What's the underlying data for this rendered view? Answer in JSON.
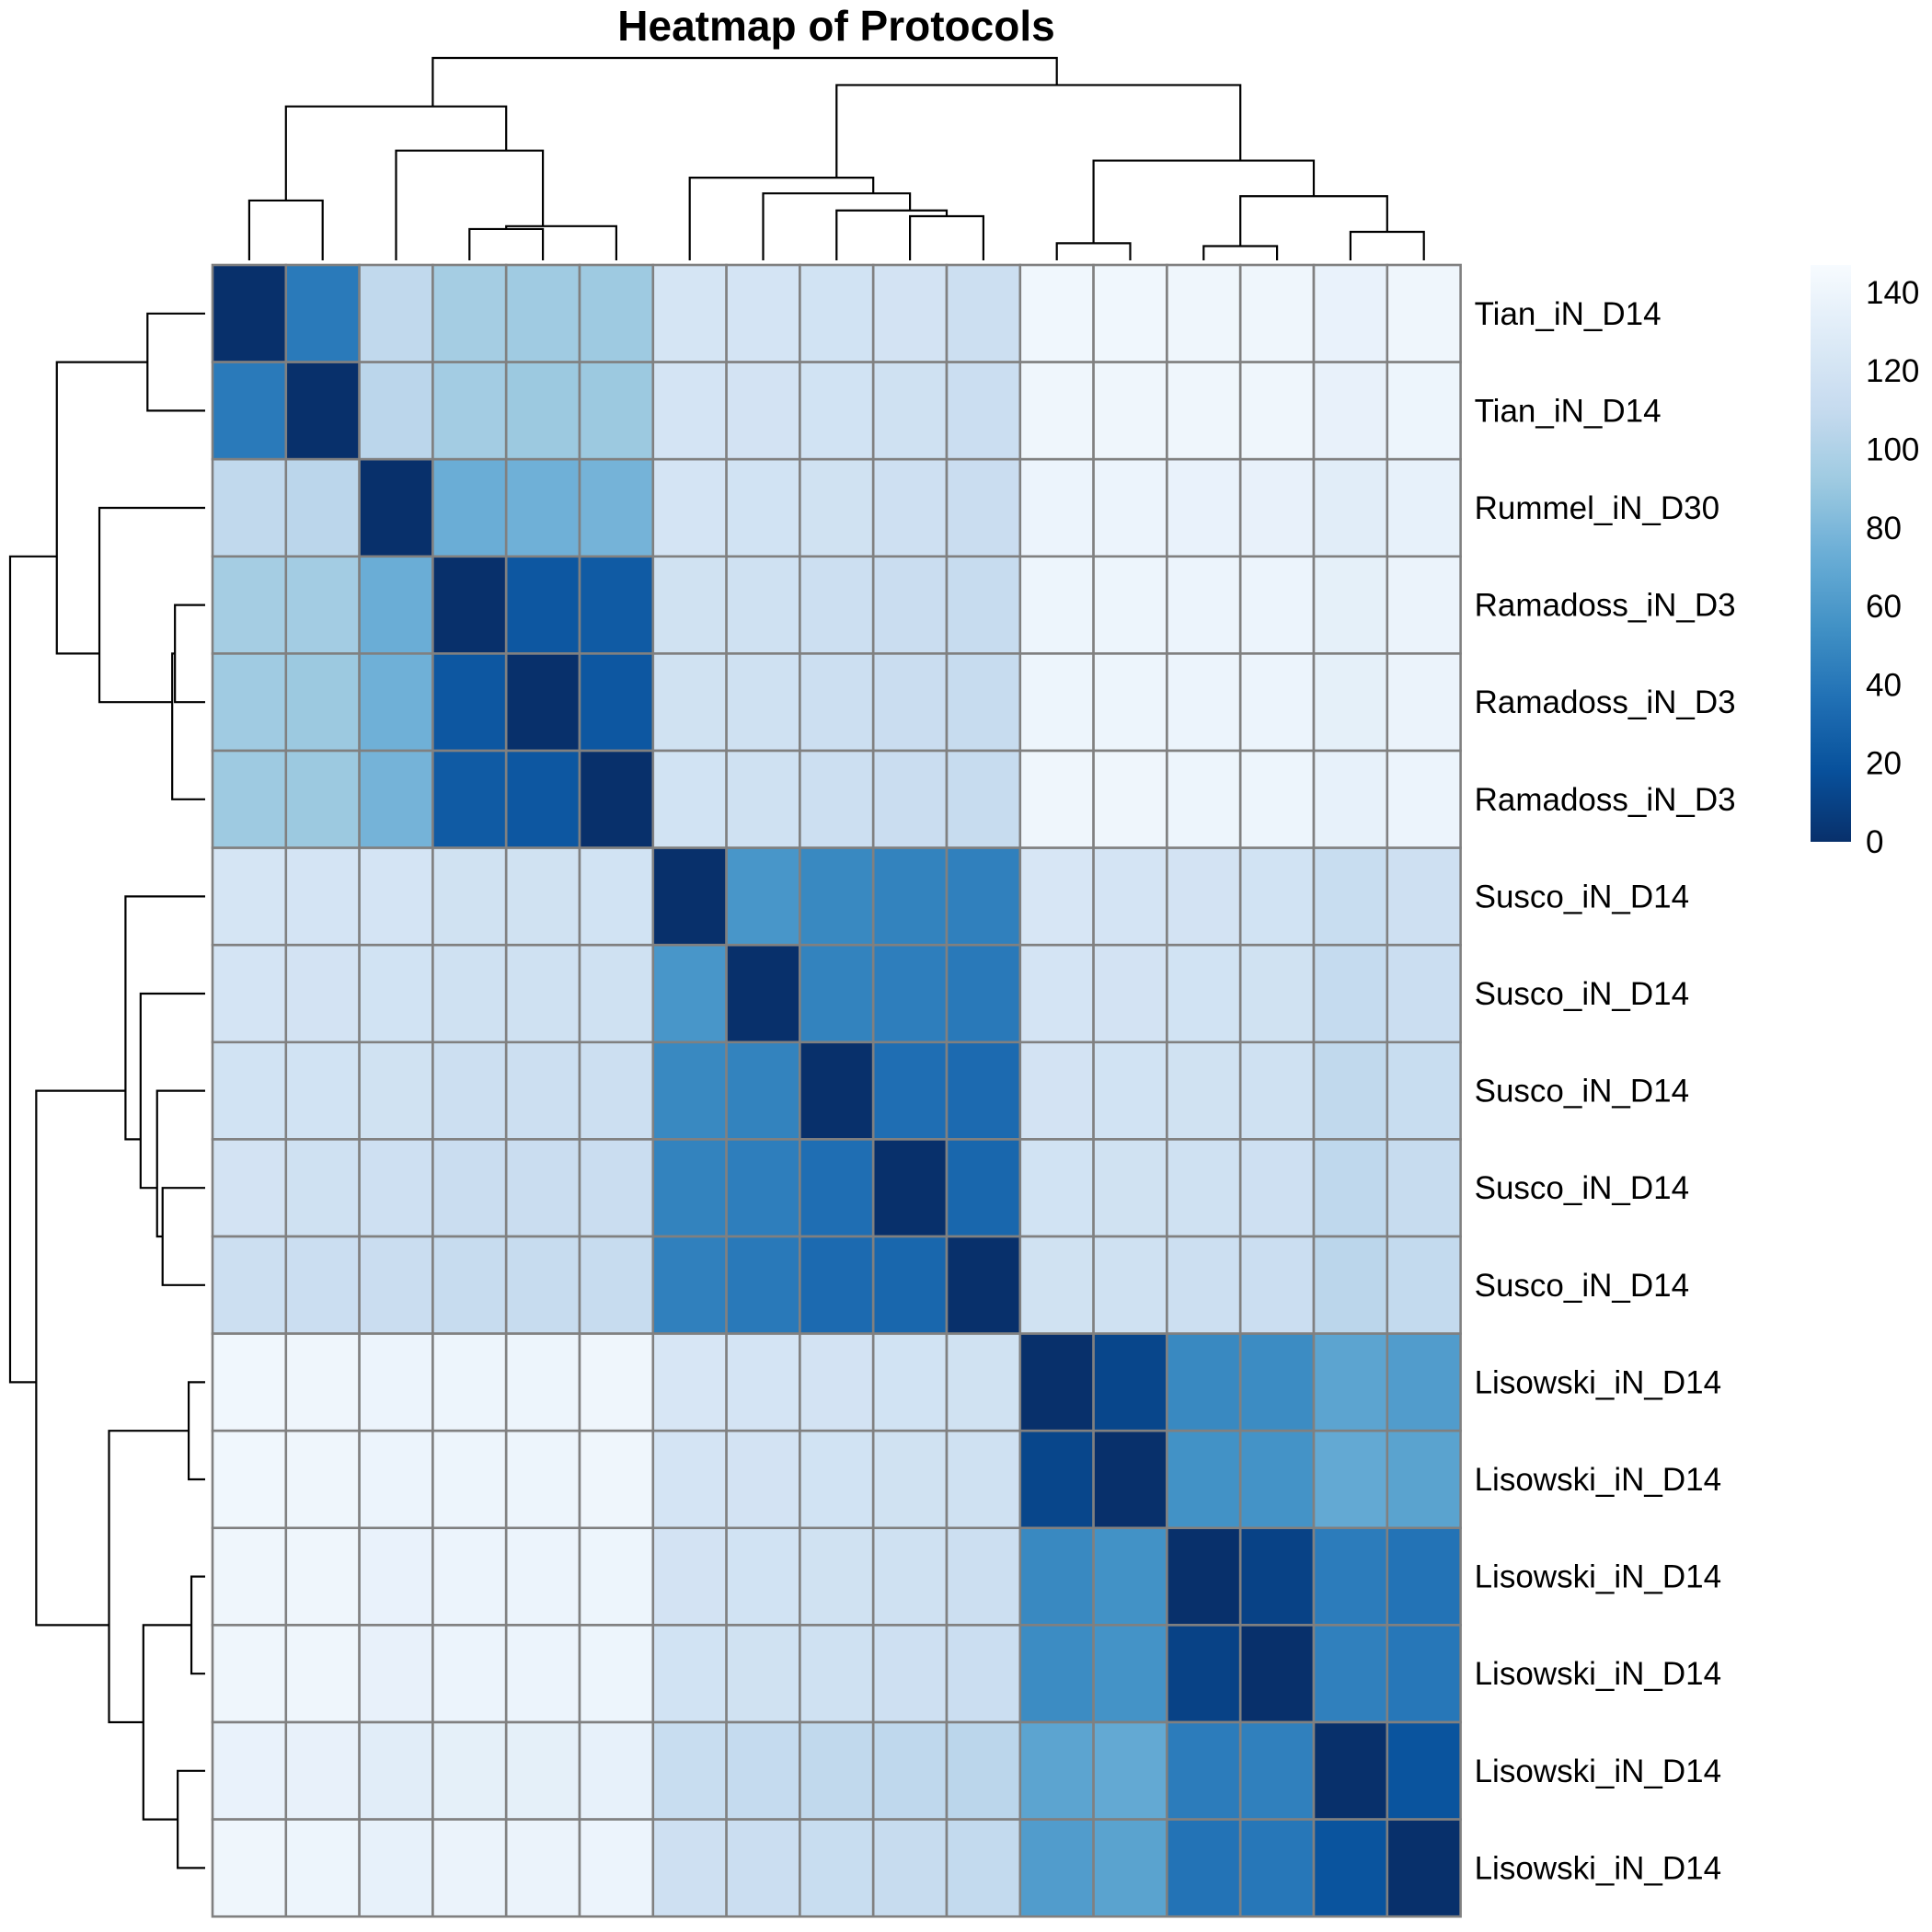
{
  "chart_data": {
    "type": "heatmap",
    "title": "Heatmap of Protocols",
    "row_labels": [
      "Tian_iN_D14",
      "Tian_iN_D14",
      "Rummel_iN_D30",
      "Ramadoss_iN_D3",
      "Ramadoss_iN_D3",
      "Ramadoss_iN_D3",
      "Susco_iN_D14",
      "Susco_iN_D14",
      "Susco_iN_D14",
      "Susco_iN_D14",
      "Susco_iN_D14",
      "Lisowski_iN_D14",
      "Lisowski_iN_D14",
      "Lisowski_iN_D14",
      "Lisowski_iN_D14",
      "Lisowski_iN_D14",
      "Lisowski_iN_D14"
    ],
    "values": [
      [
        0,
        42,
        108,
        95,
        93,
        92,
        122,
        121,
        119,
        120,
        115,
        142,
        142,
        141,
        141,
        137,
        141
      ],
      [
        42,
        0,
        105,
        94,
        91,
        91,
        121,
        120,
        119,
        117,
        114,
        141,
        141,
        141,
        141,
        136,
        140
      ],
      [
        108,
        105,
        0,
        73,
        75,
        77,
        121,
        119,
        118,
        116,
        113,
        139,
        139,
        137,
        136,
        131,
        135
      ],
      [
        95,
        94,
        73,
        0,
        22,
        24,
        118,
        117,
        115,
        113,
        111,
        140,
        140,
        139,
        139,
        134,
        138
      ],
      [
        93,
        91,
        75,
        22,
        0,
        22,
        118,
        117,
        115,
        113,
        111,
        140,
        140,
        139,
        139,
        134,
        138
      ],
      [
        92,
        91,
        77,
        24,
        22,
        0,
        119,
        117,
        115,
        113,
        111,
        141,
        141,
        140,
        140,
        135,
        139
      ],
      [
        122,
        121,
        121,
        118,
        118,
        119,
        0,
        58,
        50,
        47,
        45,
        123,
        121,
        120,
        119,
        112,
        116
      ],
      [
        121,
        120,
        119,
        117,
        117,
        117,
        58,
        0,
        47,
        44,
        41,
        121,
        120,
        119,
        118,
        110,
        114
      ],
      [
        119,
        119,
        118,
        115,
        115,
        115,
        50,
        47,
        0,
        35,
        33,
        120,
        119,
        118,
        117,
        108,
        112
      ],
      [
        120,
        117,
        116,
        113,
        113,
        113,
        47,
        44,
        35,
        0,
        31,
        119,
        118,
        117,
        116,
        107,
        111
      ],
      [
        115,
        114,
        113,
        111,
        111,
        111,
        45,
        41,
        33,
        31,
        0,
        118,
        117,
        115,
        114,
        105,
        109
      ],
      [
        142,
        141,
        139,
        140,
        140,
        141,
        123,
        121,
        120,
        119,
        118,
        0,
        12,
        50,
        52,
        67,
        62
      ],
      [
        142,
        141,
        139,
        140,
        140,
        141,
        121,
        120,
        119,
        118,
        117,
        12,
        0,
        55,
        56,
        70,
        66
      ],
      [
        141,
        141,
        137,
        139,
        139,
        140,
        120,
        119,
        118,
        117,
        115,
        50,
        55,
        0,
        10,
        43,
        38
      ],
      [
        141,
        141,
        136,
        139,
        139,
        140,
        119,
        118,
        117,
        116,
        114,
        52,
        56,
        10,
        0,
        45,
        40
      ],
      [
        137,
        136,
        131,
        134,
        134,
        135,
        112,
        110,
        108,
        107,
        105,
        67,
        70,
        43,
        45,
        0,
        20
      ],
      [
        141,
        140,
        135,
        138,
        138,
        139,
        116,
        114,
        112,
        111,
        109,
        62,
        66,
        38,
        40,
        20,
        0
      ]
    ],
    "color_scale": {
      "min": 0,
      "max": 147,
      "stops": [
        "#08306b",
        "#08519c",
        "#2171b5",
        "#4292c6",
        "#6baed6",
        "#9ecae1",
        "#c6dbef",
        "#deebf7",
        "#f7fbff"
      ],
      "legend_ticks": [
        0,
        20,
        40,
        60,
        80,
        100,
        120,
        140
      ]
    },
    "dendrogram_merge_heights": [
      {
        "left": [
          0
        ],
        "right": [
          1
        ],
        "height": 42
      },
      {
        "left": [
          3
        ],
        "right": [
          4
        ],
        "height": 22
      },
      {
        "left": [
          3,
          4
        ],
        "right": [
          5
        ],
        "height": 24
      },
      {
        "left": [
          2
        ],
        "right": [
          3,
          4,
          5
        ],
        "height": 77
      },
      {
        "left": [
          0,
          1
        ],
        "right": [
          2,
          3,
          4,
          5
        ],
        "height": 108
      },
      {
        "left": [
          9
        ],
        "right": [
          10
        ],
        "height": 31
      },
      {
        "left": [
          8
        ],
        "right": [
          9,
          10
        ],
        "height": 35
      },
      {
        "left": [
          7
        ],
        "right": [
          8,
          9,
          10
        ],
        "height": 47
      },
      {
        "left": [
          6
        ],
        "right": [
          7,
          8,
          9,
          10
        ],
        "height": 58
      },
      {
        "left": [
          11
        ],
        "right": [
          12
        ],
        "height": 12
      },
      {
        "left": [
          13
        ],
        "right": [
          14
        ],
        "height": 10
      },
      {
        "left": [
          15
        ],
        "right": [
          16
        ],
        "height": 20
      },
      {
        "left": [
          13,
          14
        ],
        "right": [
          15,
          16
        ],
        "height": 45
      },
      {
        "left": [
          11,
          12
        ],
        "right": [
          13,
          14,
          15,
          16
        ],
        "height": 70
      },
      {
        "left": [
          6,
          7,
          8,
          9,
          10
        ],
        "right": [
          11,
          12,
          13,
          14,
          15,
          16
        ],
        "height": 123
      },
      {
        "left": [
          0,
          1,
          2,
          3,
          4,
          5
        ],
        "right": [
          6,
          7,
          8,
          9,
          10,
          11,
          12,
          13,
          14,
          15,
          16
        ],
        "height": 142
      }
    ],
    "grid": true
  }
}
